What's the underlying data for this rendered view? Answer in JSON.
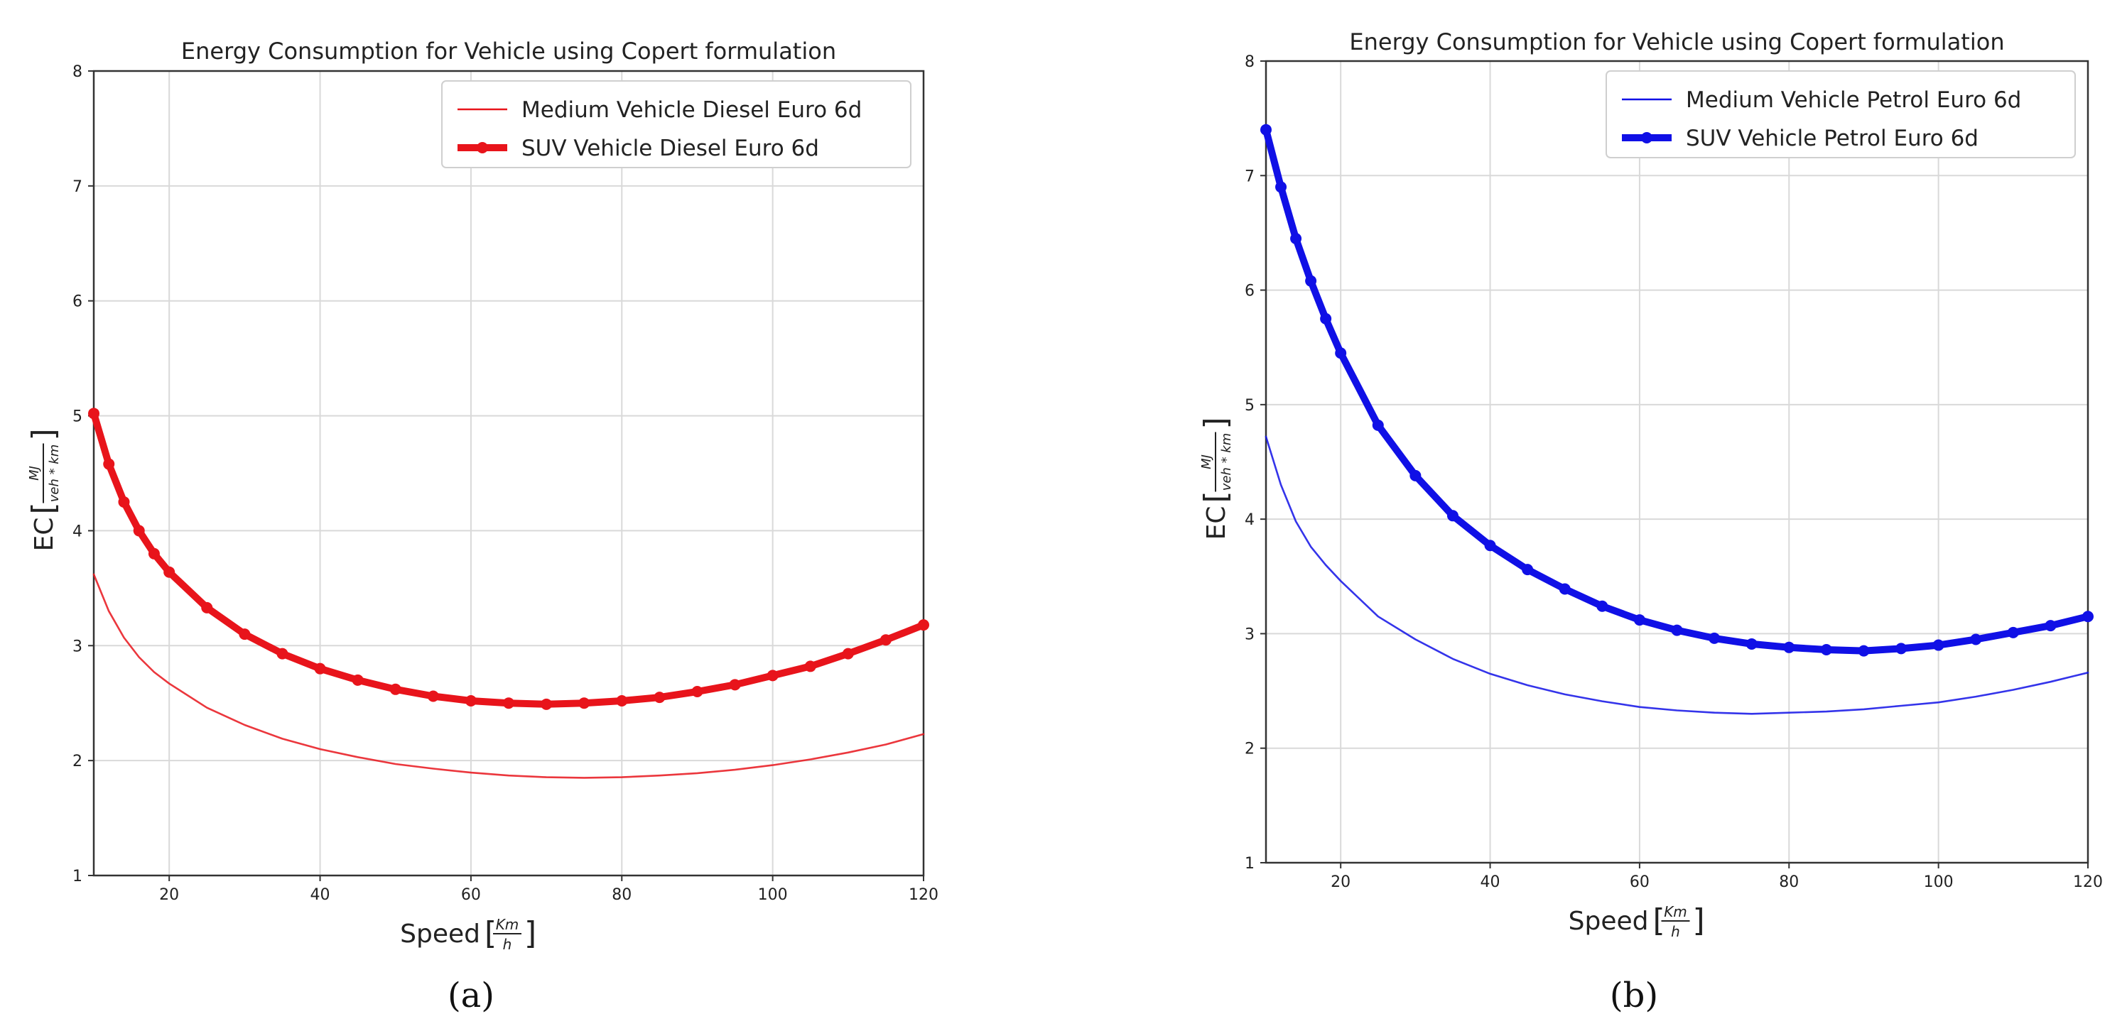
{
  "chart_data": [
    {
      "type": "line",
      "title": "Energy Consumption for Vehicle using Copert formulation",
      "panel_label": "(a)",
      "xlabel": "Speed",
      "xlabel_unit_num": "Km",
      "xlabel_unit_den": "h",
      "ylabel": "EC",
      "ylabel_unit_num": "MJ",
      "ylabel_unit_den": "veh * km",
      "xlim": [
        10,
        120
      ],
      "ylim": [
        1,
        8
      ],
      "xticks": [
        "20",
        "40",
        "60",
        "80",
        "100",
        "120"
      ],
      "yticks": [
        "1",
        "2",
        "3",
        "4",
        "5",
        "6",
        "7",
        "8"
      ],
      "grid": true,
      "legend_position": "top-right",
      "color": "#e8141b",
      "series": [
        {
          "name": "Medium Vehicle Diesel Euro 6d",
          "style": "thin",
          "x": [
            10,
            12,
            14,
            16,
            18,
            20,
            25,
            30,
            35,
            40,
            45,
            50,
            55,
            60,
            65,
            70,
            75,
            80,
            85,
            90,
            95,
            100,
            105,
            110,
            115,
            120
          ],
          "y": [
            3.62,
            3.3,
            3.07,
            2.9,
            2.77,
            2.67,
            2.46,
            2.31,
            2.19,
            2.1,
            2.03,
            1.97,
            1.93,
            1.895,
            1.87,
            1.855,
            1.85,
            1.855,
            1.87,
            1.89,
            1.92,
            1.96,
            2.01,
            2.07,
            2.14,
            2.23
          ]
        },
        {
          "name": "SUV Vehicle Diesel Euro 6d",
          "style": "thick-markers",
          "x": [
            10,
            12,
            14,
            16,
            18,
            20,
            25,
            30,
            35,
            40,
            45,
            50,
            55,
            60,
            65,
            70,
            75,
            80,
            85,
            90,
            95,
            100,
            105,
            110,
            115,
            120
          ],
          "y": [
            5.02,
            4.58,
            4.25,
            4.0,
            3.8,
            3.64,
            3.33,
            3.1,
            2.93,
            2.8,
            2.7,
            2.62,
            2.56,
            2.52,
            2.5,
            2.49,
            2.5,
            2.52,
            2.55,
            2.6,
            2.66,
            2.74,
            2.82,
            2.93,
            3.05,
            3.18
          ]
        }
      ]
    },
    {
      "type": "line",
      "title": "Energy Consumption for Vehicle using Copert formulation",
      "panel_label": "(b)",
      "xlabel": "Speed",
      "xlabel_unit_num": "Km",
      "xlabel_unit_den": "h",
      "ylabel": "EC",
      "ylabel_unit_num": "MJ",
      "ylabel_unit_den": "veh * km",
      "xlim": [
        10,
        120
      ],
      "ylim": [
        1,
        8
      ],
      "xticks": [
        "20",
        "40",
        "60",
        "80",
        "100",
        "120"
      ],
      "yticks": [
        "1",
        "2",
        "3",
        "4",
        "5",
        "6",
        "7",
        "8"
      ],
      "grid": true,
      "legend_position": "top-right",
      "color": "#1010e6",
      "series": [
        {
          "name": "Medium Vehicle Petrol Euro 6d",
          "style": "thin",
          "x": [
            10,
            12,
            14,
            16,
            18,
            20,
            25,
            30,
            35,
            40,
            45,
            50,
            55,
            60,
            65,
            70,
            75,
            80,
            85,
            90,
            95,
            100,
            105,
            110,
            115,
            120
          ],
          "y": [
            4.72,
            4.3,
            3.98,
            3.76,
            3.6,
            3.46,
            3.15,
            2.95,
            2.78,
            2.65,
            2.55,
            2.47,
            2.41,
            2.36,
            2.33,
            2.31,
            2.3,
            2.31,
            2.32,
            2.34,
            2.37,
            2.4,
            2.45,
            2.51,
            2.58,
            2.66
          ]
        },
        {
          "name": "SUV Vehicle Petrol Euro 6d",
          "style": "thick-markers",
          "x": [
            10,
            12,
            14,
            16,
            18,
            20,
            25,
            30,
            35,
            40,
            45,
            50,
            55,
            60,
            65,
            70,
            75,
            80,
            85,
            90,
            95,
            100,
            105,
            110,
            115,
            120
          ],
          "y": [
            7.4,
            6.9,
            6.45,
            6.08,
            5.75,
            5.45,
            4.82,
            4.38,
            4.03,
            3.77,
            3.56,
            3.39,
            3.24,
            3.12,
            3.03,
            2.96,
            2.91,
            2.88,
            2.86,
            2.85,
            2.87,
            2.9,
            2.95,
            3.01,
            3.07,
            3.15
          ]
        }
      ]
    }
  ]
}
